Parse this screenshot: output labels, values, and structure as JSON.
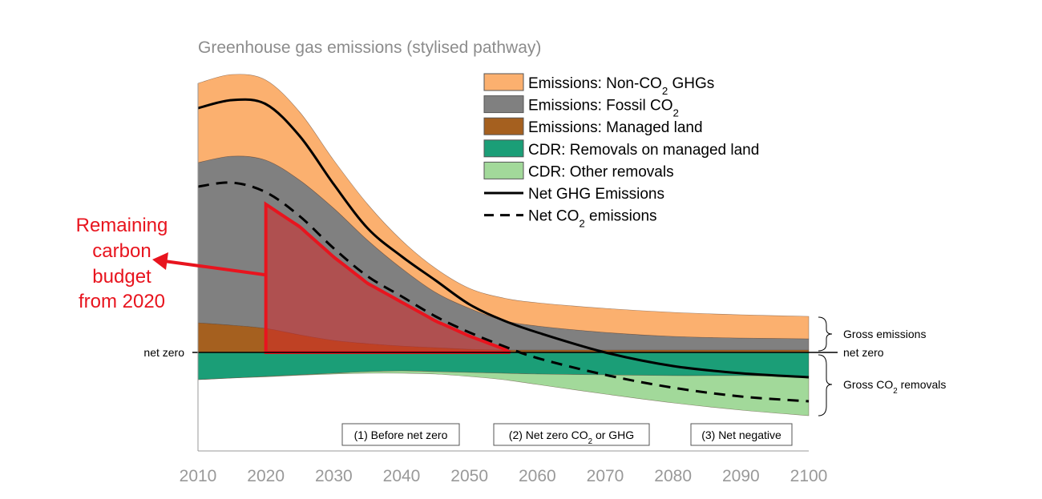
{
  "chart_data": {
    "type": "area",
    "title": "Greenhouse gas emissions (stylised pathway)",
    "xlabel": "",
    "ylabel": "",
    "units_note": "arbitrary units (stylised, no y-axis scale shown)",
    "xlim": [
      2010,
      2100
    ],
    "ylim": [
      -24.6,
      70
    ],
    "x_ticks": [
      "2010",
      "2020",
      "2030",
      "2040",
      "2050",
      "2060",
      "2070",
      "2080",
      "2090",
      "2100"
    ],
    "x": [
      2010,
      2015,
      2020,
      2025,
      2030,
      2035,
      2040,
      2045,
      2050,
      2055,
      2060,
      2070,
      2080,
      2090,
      2100
    ],
    "stacked_positive": [
      {
        "name": "Emissions: Managed land",
        "color": "#a5601f",
        "values": [
          7.4,
          6.8,
          6,
          4.4,
          3,
          2.2,
          1.6,
          1.2,
          0.8,
          0.6,
          0.6,
          0.6,
          0.6,
          0.6,
          0.6
        ]
      },
      {
        "name": "Emissions: Fossil CO2",
        "color": "#808080",
        "values": [
          40,
          42.2,
          42,
          38.6,
          33,
          25.8,
          19.4,
          13.8,
          10.2,
          7.4,
          6,
          4.4,
          3.4,
          3,
          2.8
        ]
      },
      {
        "name": "Emissions: Non-CO2 GHGs",
        "color": "#fbb06f",
        "values": [
          19.8,
          20.4,
          20,
          17,
          12,
          9,
          7,
          6,
          5,
          5.6,
          5.8,
          6,
          6,
          5.8,
          5.6
        ]
      }
    ],
    "stacked_negative": [
      {
        "name": "CDR: Removals on managed land",
        "color": "#1b9e77",
        "values": [
          -6.8,
          -6.4,
          -6,
          -5.6,
          -5.2,
          -4.8,
          -4.6,
          -4.8,
          -5,
          -5.2,
          -5.4,
          -5.6,
          -5.8,
          -5.8,
          -6
        ]
      },
      {
        "name": "CDR: Other removals",
        "color": "#a2d99a",
        "values": [
          0,
          0,
          -0.1,
          -0.1,
          -0.2,
          -0.4,
          -0.6,
          -0.6,
          -1,
          -1.6,
          -2.6,
          -4.8,
          -6.8,
          -8.6,
          -9.8
        ]
      }
    ],
    "lines": [
      {
        "name": "Net GHG Emissions",
        "style": "solid",
        "color": "#000000",
        "values": [
          61,
          63,
          62,
          54,
          42,
          31,
          24,
          18,
          12,
          8,
          5,
          0,
          -3.4,
          -5.2,
          -6.2
        ]
      },
      {
        "name": "Net CO2 emissions",
        "style": "dashed",
        "color": "#000000",
        "values": [
          41.4,
          42.4,
          40,
          34,
          26,
          19,
          14,
          9,
          5,
          1.6,
          -1.4,
          -5.6,
          -8.8,
          -11,
          -12.2
        ]
      }
    ],
    "carbon_budget": {
      "start_year": 2020,
      "end_year": 2056,
      "color": "#e8141e"
    },
    "legend": {
      "placement": "top-right",
      "items": [
        {
          "pre": "Emissions: Non-CO",
          "sub": "2",
          "post": " GHGs",
          "kind": "box",
          "color": "#fbb06f"
        },
        {
          "pre": "Emissions: Fossil CO",
          "sub": "2",
          "post": "",
          "kind": "box",
          "color": "#808080"
        },
        {
          "pre": "Emissions: Managed land",
          "sub": "",
          "post": "",
          "kind": "box",
          "color": "#a5601f"
        },
        {
          "pre": "CDR: Removals on managed land",
          "sub": "",
          "post": "",
          "kind": "box",
          "color": "#1b9e77"
        },
        {
          "pre": "CDR: Other removals",
          "sub": "",
          "post": "",
          "kind": "box",
          "color": "#a2d99a"
        },
        {
          "pre": "Net GHG Emissions",
          "sub": "",
          "post": "",
          "kind": "solid",
          "color": "#000000"
        },
        {
          "pre": "Net CO",
          "sub": "2",
          "post": " emissions",
          "kind": "dashed",
          "color": "#000000"
        }
      ]
    },
    "annotations": {
      "budget_label": [
        "Remaining",
        "carbon",
        "budget",
        "from 2020"
      ],
      "net_zero_left": "net zero",
      "net_zero_right": "net zero",
      "gross_emissions": "Gross emissions",
      "gross_removals": {
        "pre": "Gross CO",
        "sub": "2",
        "post": " removals"
      },
      "phases": [
        {
          "pre": "(1) Before net zero",
          "sub": "",
          "post": ""
        },
        {
          "pre": "(2) Net zero CO",
          "sub": "2",
          "post": " or GHG"
        },
        {
          "pre": "(3) Net negative",
          "sub": "",
          "post": ""
        }
      ]
    }
  }
}
